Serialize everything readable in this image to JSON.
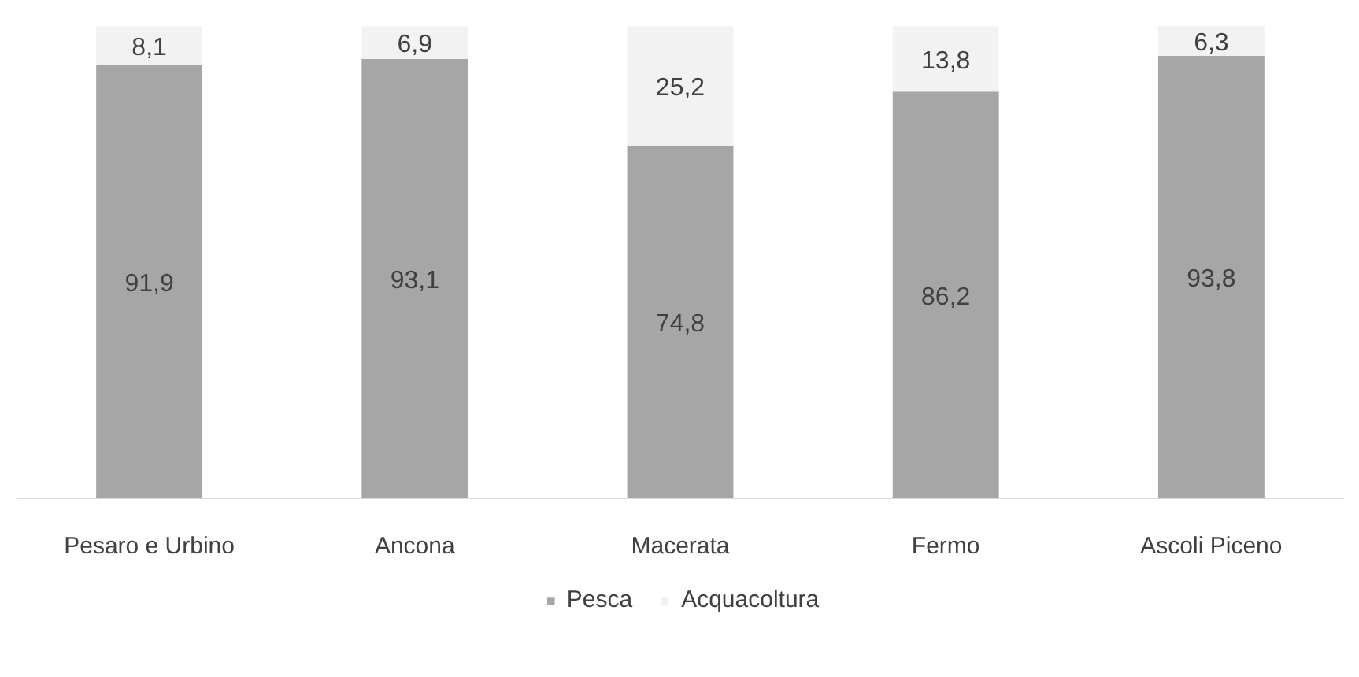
{
  "chart_data": {
    "type": "bar",
    "stacked": true,
    "categories": [
      "Pesaro e Urbino",
      "Ancona",
      "Macerata",
      "Fermo",
      "Ascoli Piceno"
    ],
    "series": [
      {
        "name": "Pesca",
        "color": "#a6a6a6",
        "values": [
          91.9,
          93.1,
          74.8,
          86.2,
          93.8
        ],
        "value_labels": [
          "91,9",
          "93,1",
          "74,8",
          "86,2",
          "93,8"
        ]
      },
      {
        "name": "Acquacoltura",
        "color": "#f2f2f2",
        "values": [
          8.1,
          6.9,
          25.2,
          13.8,
          6.3
        ],
        "value_labels": [
          "8,1",
          "6,9",
          "25,2",
          "13,8",
          "6,3"
        ]
      }
    ],
    "tick_labels": "x",
    "legend": "bottom"
  }
}
